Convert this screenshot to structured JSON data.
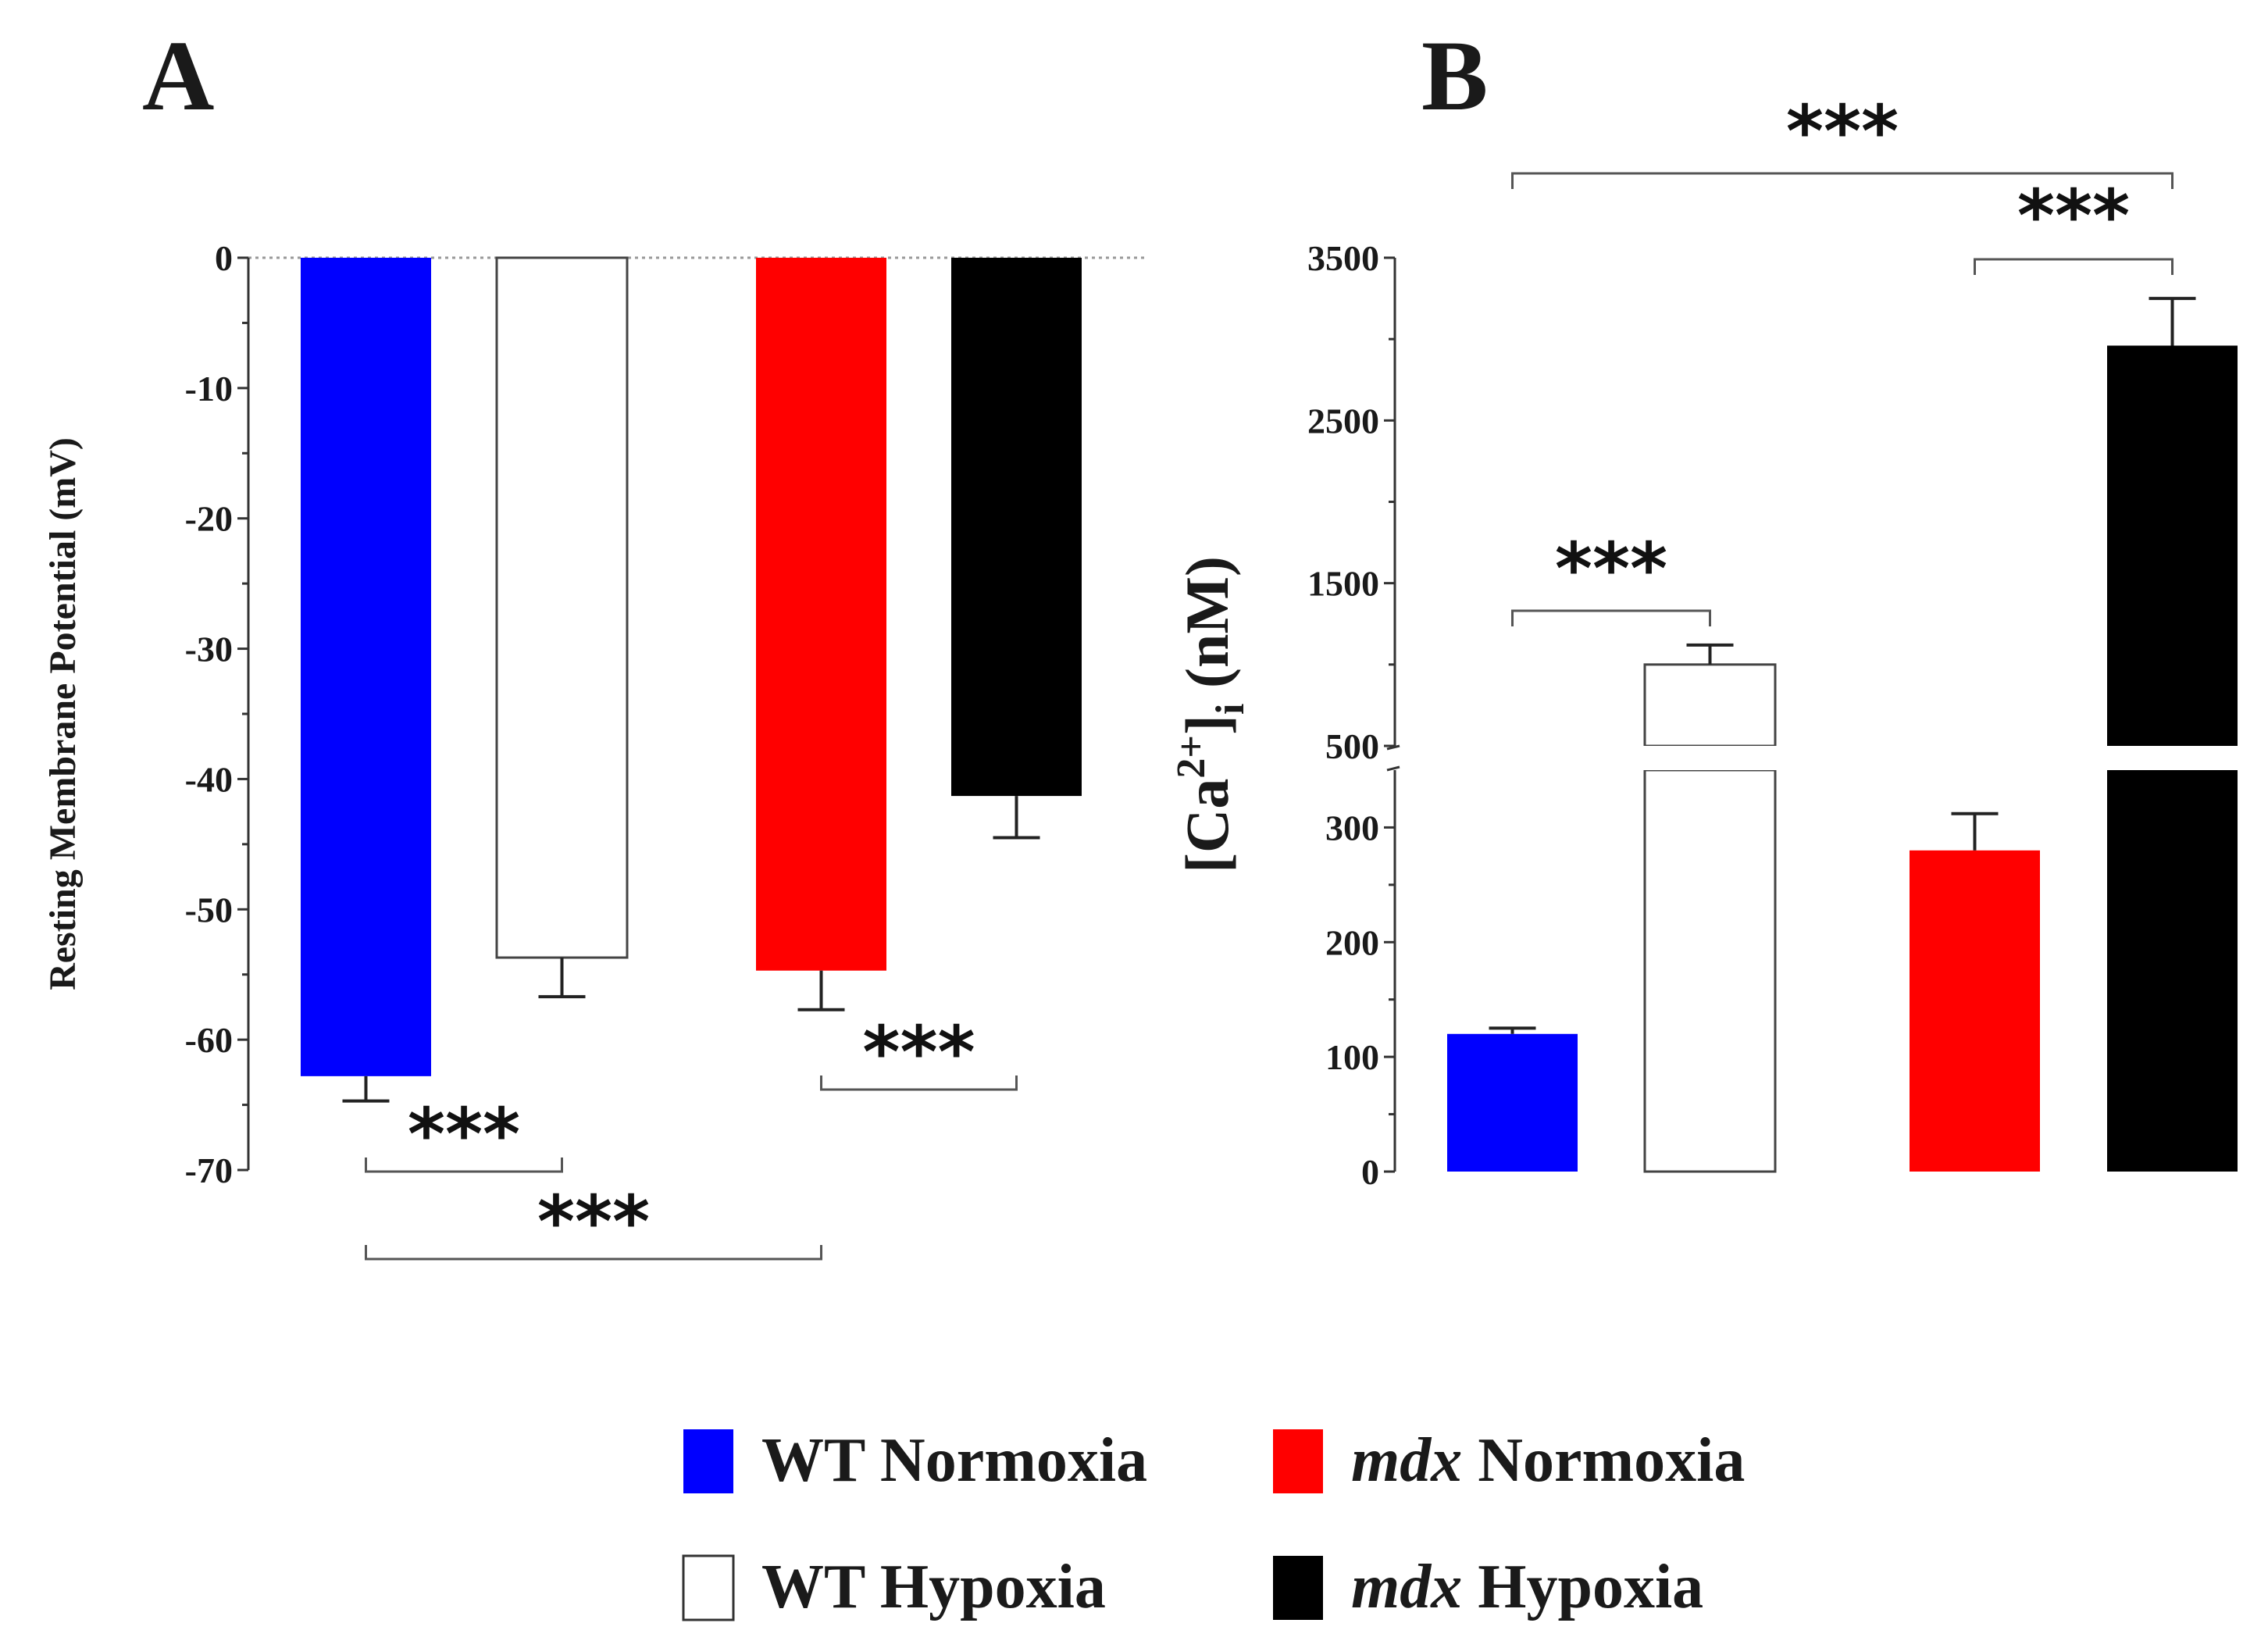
{
  "chart_data": [
    {
      "panel": "A",
      "type": "bar",
      "ylabel": "Resting Membrane Potential (mV)",
      "ylim": [
        -70,
        0
      ],
      "yticks": [
        0,
        -10,
        -20,
        -30,
        -40,
        -50,
        -60,
        -70
      ],
      "ytick_labels": [
        "0",
        "-10",
        "-20",
        "-30",
        "-40",
        "-50",
        "-60",
        "-70"
      ],
      "baseline_dotted": true,
      "categories": [
        "WT Normoxia",
        "WT Hypoxia",
        "mdx Normoxia",
        "mdx Hypoxia"
      ],
      "values": [
        -62.8,
        -53.7,
        -54.7,
        -41.3
      ],
      "errors": [
        1.9,
        3.0,
        3.0,
        3.2
      ],
      "significance": [
        {
          "from": 0,
          "to": 1,
          "label": "***"
        },
        {
          "from": 0,
          "to": 2,
          "label": "***"
        },
        {
          "from": 2,
          "to": 3,
          "label": "***"
        }
      ]
    },
    {
      "panel": "B",
      "type": "bar",
      "ylabel": "[Ca2+]i (nM)",
      "broken_axis": true,
      "lower_ylim": [
        0,
        350
      ],
      "upper_ylim": [
        500,
        3500
      ],
      "lower_yticks": [
        0,
        100,
        200,
        300
      ],
      "lower_ytick_labels": [
        "0",
        "100",
        "200",
        "300"
      ],
      "upper_yticks": [
        500,
        1500,
        2500,
        3500
      ],
      "upper_ytick_labels": [
        "500",
        "1500",
        "2500",
        "3500"
      ],
      "categories": [
        "WT Normoxia",
        "WT Hypoxia",
        "mdx Normoxia",
        "mdx Hypoxia"
      ],
      "values": [
        120,
        1000,
        280,
        2960
      ],
      "errors": [
        5,
        120,
        32,
        290
      ],
      "significance": [
        {
          "from": 0,
          "to": 1,
          "label": "***"
        },
        {
          "from": 2,
          "to": 3,
          "label": "***"
        },
        {
          "from": 0,
          "to": 3,
          "label": "***"
        }
      ]
    }
  ],
  "panels": {
    "a_label": "A",
    "b_label": "B"
  },
  "ca_label": {
    "open": "[Ca",
    "sup": "2+",
    "mid": "]",
    "sub": "i",
    "units": " (nM)"
  },
  "legend": [
    {
      "prefix": "",
      "text": "WT Normoxia",
      "color": "#0000ff",
      "fill": "solid"
    },
    {
      "prefix": "mdx",
      "text": " Normoxia",
      "color": "#ff0000",
      "fill": "solid"
    },
    {
      "prefix": "",
      "text": "WT Hypoxia",
      "color": "#ffffff",
      "fill": "outline"
    },
    {
      "prefix": "mdx",
      "text": " Hypoxia",
      "color": "#000000",
      "fill": "solid"
    }
  ],
  "colors": [
    "#0000ff",
    "#ffffff",
    "#ff0000",
    "#000000"
  ]
}
